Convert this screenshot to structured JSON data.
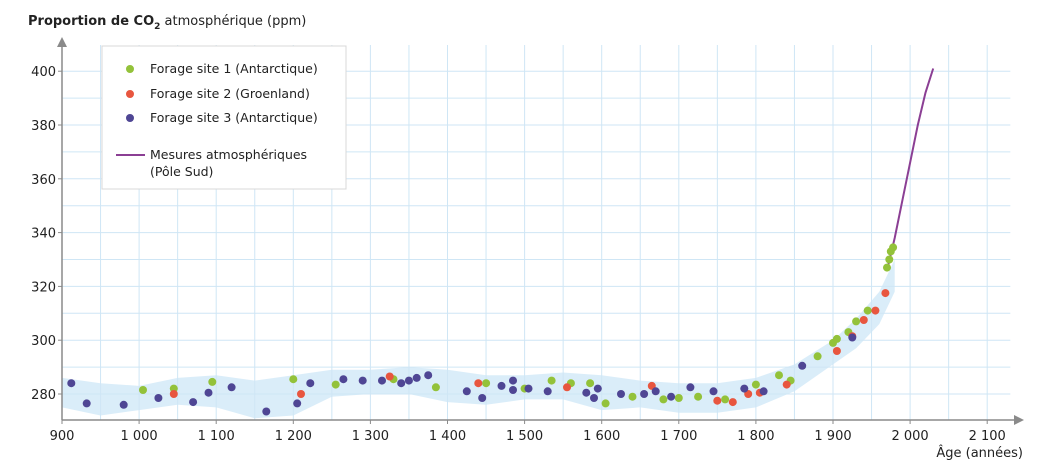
{
  "chart_data": {
    "type": "scatter",
    "title": "",
    "ylabel_main": "Proportion de CO",
    "ylabel_sub": "2",
    "ylabel_tail": " atmosphérique (ppm)",
    "xlabel": "Âge (années)",
    "xlim": [
      900,
      2130
    ],
    "ylim": [
      269,
      410
    ],
    "xticks": [
      900,
      1000,
      1100,
      1200,
      1300,
      1400,
      1500,
      1600,
      1700,
      1800,
      1900,
      2000,
      2100
    ],
    "xtick_labels": [
      "900",
      "1 000",
      "1 100",
      "1 200",
      "1 300",
      "1 400",
      "1 500",
      "1 600",
      "1 700",
      "1 800",
      "1 900",
      "2 000",
      "2 100"
    ],
    "yticks": [
      280,
      300,
      320,
      340,
      360,
      380,
      400
    ],
    "ytick_labels": [
      "280",
      "300",
      "320",
      "340",
      "360",
      "380",
      "400"
    ],
    "grid": true,
    "legend_position": "top-left",
    "colors": {
      "site1": "#93c23a",
      "site2": "#e8563f",
      "site3": "#4f4694",
      "line": "#8b3f94",
      "band": "#d3eaf8",
      "grid": "#cfe6f5",
      "axis": "#8a8a8a"
    },
    "series": [
      {
        "name": "Forage site 1 (Antarctique)",
        "kind": "scatter",
        "points": [
          [
            1005,
            281.5
          ],
          [
            1045,
            282
          ],
          [
            1095,
            284.5
          ],
          [
            1200,
            285.5
          ],
          [
            1255,
            283.5
          ],
          [
            1330,
            285.5
          ],
          [
            1385,
            282.5
          ],
          [
            1450,
            284
          ],
          [
            1500,
            282
          ],
          [
            1535,
            285
          ],
          [
            1560,
            284
          ],
          [
            1585,
            284
          ],
          [
            1605,
            276.5
          ],
          [
            1640,
            279
          ],
          [
            1680,
            278
          ],
          [
            1700,
            278.5
          ],
          [
            1725,
            279
          ],
          [
            1760,
            278
          ],
          [
            1800,
            283.5
          ],
          [
            1830,
            287
          ],
          [
            1845,
            285
          ],
          [
            1880,
            294
          ],
          [
            1900,
            299
          ],
          [
            1905,
            300.5
          ],
          [
            1920,
            303
          ],
          [
            1930,
            307
          ],
          [
            1945,
            311
          ],
          [
            1970,
            327
          ],
          [
            1973,
            330
          ],
          [
            1975,
            333
          ],
          [
            1978,
            334.5
          ]
        ]
      },
      {
        "name": "Forage site 2 (Groenland)",
        "kind": "scatter",
        "points": [
          [
            1045,
            280
          ],
          [
            1210,
            280
          ],
          [
            1325,
            286.5
          ],
          [
            1440,
            284
          ],
          [
            1555,
            282.5
          ],
          [
            1665,
            283
          ],
          [
            1750,
            277.5
          ],
          [
            1770,
            277
          ],
          [
            1790,
            280
          ],
          [
            1805,
            280.5
          ],
          [
            1840,
            283.5
          ],
          [
            1905,
            296
          ],
          [
            1925,
            301.5
          ],
          [
            1940,
            307.5
          ],
          [
            1955,
            311
          ],
          [
            1968,
            317.5
          ]
        ]
      },
      {
        "name": "Forage site 3 (Antarctique)",
        "kind": "scatter",
        "points": [
          [
            912,
            284
          ],
          [
            932,
            276.5
          ],
          [
            980,
            276
          ],
          [
            1025,
            278.5
          ],
          [
            1070,
            277
          ],
          [
            1090,
            280.5
          ],
          [
            1120,
            282.5
          ],
          [
            1165,
            273.5
          ],
          [
            1205,
            276.5
          ],
          [
            1222,
            284
          ],
          [
            1265,
            285.5
          ],
          [
            1290,
            285
          ],
          [
            1315,
            285
          ],
          [
            1340,
            284
          ],
          [
            1350,
            285
          ],
          [
            1360,
            286
          ],
          [
            1375,
            287
          ],
          [
            1425,
            281
          ],
          [
            1445,
            278.5
          ],
          [
            1470,
            283
          ],
          [
            1485,
            281.5
          ],
          [
            1485,
            285
          ],
          [
            1505,
            282
          ],
          [
            1530,
            281
          ],
          [
            1580,
            280.5
          ],
          [
            1590,
            278.5
          ],
          [
            1595,
            282
          ],
          [
            1625,
            280
          ],
          [
            1655,
            280
          ],
          [
            1670,
            281
          ],
          [
            1690,
            279
          ],
          [
            1715,
            282.5
          ],
          [
            1745,
            281
          ],
          [
            1785,
            282
          ],
          [
            1810,
            281
          ],
          [
            1860,
            290.5
          ],
          [
            1925,
            301
          ]
        ]
      },
      {
        "name": "Mesures atmosphériques (Pôle Sud)",
        "legend_label_lines": [
          "Mesures atmosphériques",
          "(Pôle Sud)"
        ],
        "kind": "line",
        "points": [
          [
            1970,
            326
          ],
          [
            1980,
            338
          ],
          [
            1990,
            352
          ],
          [
            2000,
            366
          ],
          [
            2010,
            380
          ],
          [
            2020,
            392
          ],
          [
            2030,
            401
          ]
        ]
      }
    ],
    "band_upper": [
      [
        900,
        286
      ],
      [
        950,
        284
      ],
      [
        1000,
        283
      ],
      [
        1050,
        286
      ],
      [
        1100,
        287
      ],
      [
        1150,
        285
      ],
      [
        1200,
        287
      ],
      [
        1250,
        289
      ],
      [
        1300,
        289
      ],
      [
        1350,
        290
      ],
      [
        1400,
        289
      ],
      [
        1450,
        287
      ],
      [
        1500,
        287
      ],
      [
        1550,
        288
      ],
      [
        1600,
        287
      ],
      [
        1650,
        285
      ],
      [
        1700,
        284
      ],
      [
        1750,
        284
      ],
      [
        1800,
        286
      ],
      [
        1850,
        291
      ],
      [
        1900,
        300
      ],
      [
        1930,
        308
      ],
      [
        1960,
        318
      ],
      [
        1980,
        330
      ]
    ],
    "band_lower": [
      [
        900,
        275
      ],
      [
        950,
        272
      ],
      [
        1000,
        274
      ],
      [
        1050,
        276
      ],
      [
        1100,
        275
      ],
      [
        1150,
        271
      ],
      [
        1200,
        272
      ],
      [
        1250,
        279
      ],
      [
        1300,
        280
      ],
      [
        1350,
        280
      ],
      [
        1400,
        277
      ],
      [
        1450,
        276
      ],
      [
        1500,
        278
      ],
      [
        1550,
        278
      ],
      [
        1600,
        274
      ],
      [
        1650,
        275
      ],
      [
        1700,
        273
      ],
      [
        1750,
        273
      ],
      [
        1800,
        275
      ],
      [
        1850,
        281
      ],
      [
        1900,
        291
      ],
      [
        1930,
        297
      ],
      [
        1960,
        306
      ],
      [
        1980,
        318
      ]
    ]
  }
}
